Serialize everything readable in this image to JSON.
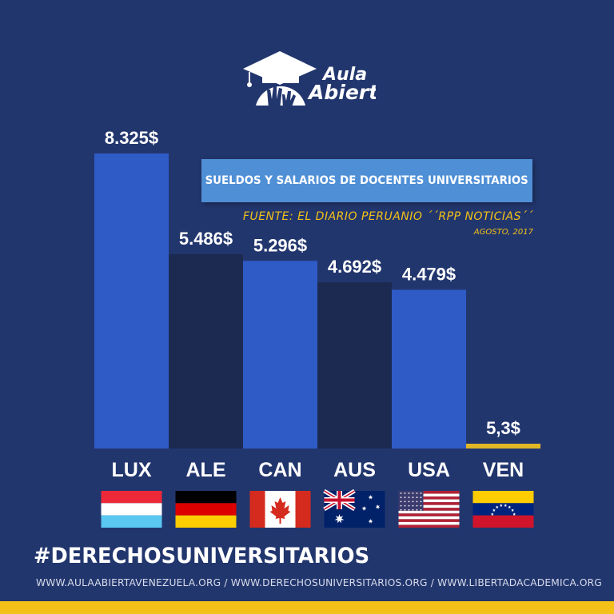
{
  "brand": {
    "name_line1": "Aula",
    "name_line2": "Abierta",
    "icon": "graduation-cap-hands-icon"
  },
  "header": {
    "title": "SUELDOS Y SALARIOS DE DOCENTES UNIVERSITARIOS",
    "source": "FUENTE:  EL DIARIO PERUANIO ´´RPP NOTICIAS´´",
    "date": "AGOSTO, 2017"
  },
  "footer": {
    "hashtag": "#DERECHOSUNIVERSITARIOS",
    "urls": "WWW.AULAABIERTAVENEZUELA.ORG  /  WWW.DERECHOSUNIVERSITARIOS.ORG  /  WWW.LIBERTADACADEMICA.ORG"
  },
  "colors": {
    "background": "#22366e",
    "bar_light": "#2f5bc7",
    "bar_dark": "#1c2a52",
    "accent": "#f3c117",
    "title_box": "#4f8fd6"
  },
  "chart_data": {
    "type": "bar",
    "categories": [
      "LUX",
      "ALE",
      "CAN",
      "AUS",
      "USA",
      "VEN"
    ],
    "values": [
      8325,
      5486,
      5296,
      4692,
      4479,
      5.3
    ],
    "value_labels": [
      "8.325$",
      "5.486$",
      "5.296$",
      "4.692$",
      "4.479$",
      "5,3$"
    ],
    "bar_colors": [
      "#2f5bc7",
      "#1c2a52",
      "#2f5bc7",
      "#1c2a52",
      "#2f5bc7",
      "#e0b726"
    ],
    "flags": [
      "luxembourg-flag-icon",
      "germany-flag-icon",
      "canada-flag-icon",
      "australia-flag-icon",
      "usa-flag-icon",
      "venezuela-flag-icon"
    ],
    "ylim": [
      0,
      8325
    ],
    "grid": false,
    "legend": "none",
    "title": "SUELDOS Y SALARIOS DE DOCENTES UNIVERSITARIOS",
    "xlabel": "",
    "ylabel": ""
  }
}
